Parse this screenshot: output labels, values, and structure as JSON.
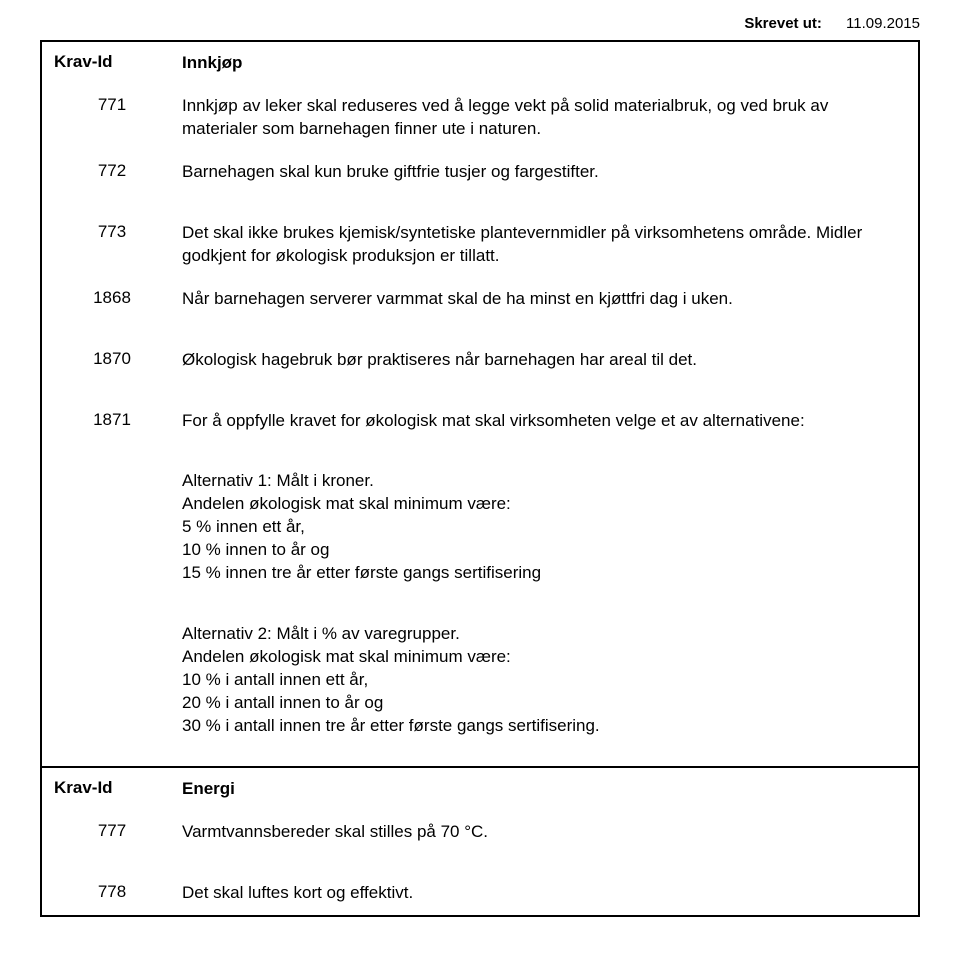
{
  "header": {
    "label": "Skrevet ut:",
    "date": "11.09.2015"
  },
  "section_innkjop": {
    "krav_label": "Krav-Id",
    "title": "Innkjøp",
    "items": [
      {
        "id": "771",
        "text": "Innkjøp av leker skal reduseres ved å legge vekt på solid materialbruk, og ved bruk av materialer som barnehagen finner ute i naturen."
      },
      {
        "id": "772",
        "text": "Barnehagen skal kun bruke giftfrie tusjer og fargestifter."
      },
      {
        "id": "773",
        "text": "Det skal ikke brukes kjemisk/syntetiske plantevernmidler på virksomhetens område. Midler godkjent for økologisk produksjon er tillatt."
      },
      {
        "id": "1868",
        "text": "Når barnehagen serverer varmmat skal de ha minst en kjøttfri dag i uken."
      },
      {
        "id": "1870",
        "text": "Økologisk hagebruk bør praktiseres når barnehagen har areal til det."
      },
      {
        "id": "1871",
        "text": "For å oppfylle kravet for økologisk mat skal virksomheten velge et av alternativene:"
      }
    ],
    "alt1": {
      "title": "Alternativ 1: Målt i kroner.",
      "line1": "Andelen økologisk mat skal minimum være:",
      "line2": "5 % innen ett år,",
      "line3": "10 % innen to år og",
      "line4": "15 % innen tre år etter første gangs sertifisering"
    },
    "alt2": {
      "title": "Alternativ 2: Målt i % av varegrupper.",
      "line1": "Andelen økologisk mat skal minimum være:",
      "line2": "10 % i antall innen ett år,",
      "line3": "20 % i antall innen to år og",
      "line4": "30 % i antall innen tre år etter første gangs sertifisering."
    }
  },
  "section_energi": {
    "krav_label": "Krav-Id",
    "title": "Energi",
    "items": [
      {
        "id": "777",
        "text": "Varmtvannsbereder skal stilles på 70 °C."
      },
      {
        "id": "778",
        "text": "Det skal luftes kort og effektivt."
      }
    ]
  }
}
